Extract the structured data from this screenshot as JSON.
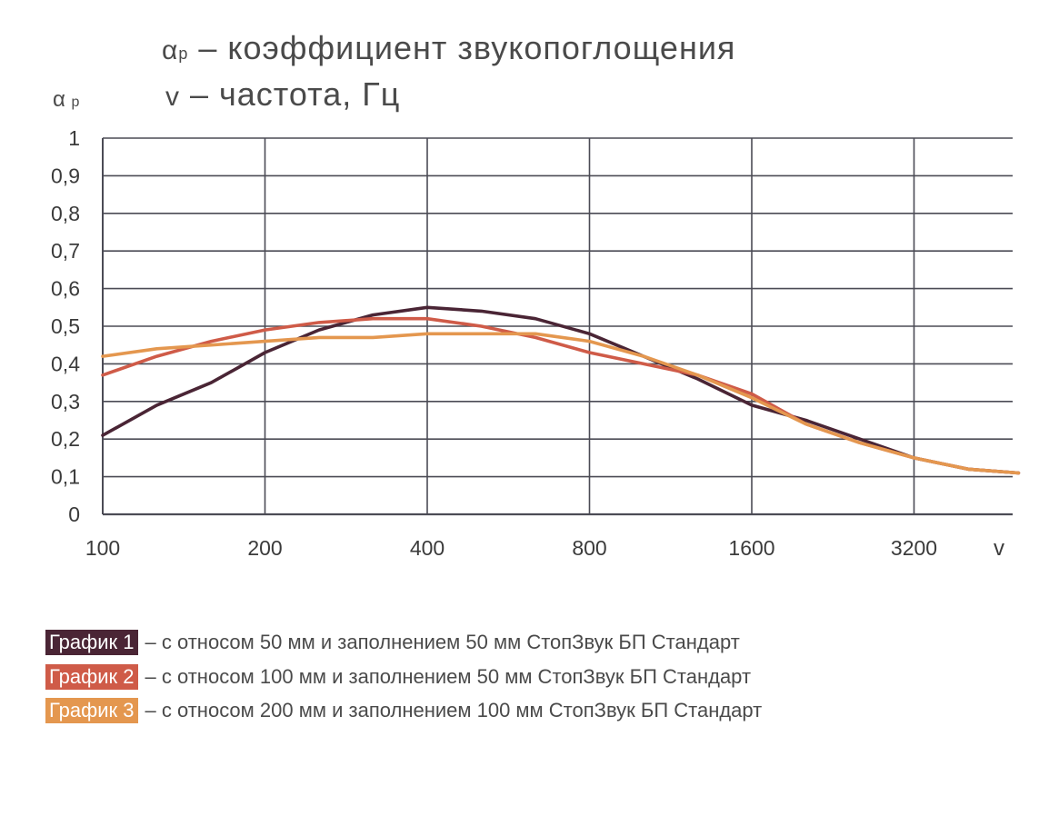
{
  "title": {
    "line1_symbol": "α",
    "line1_sub": "p",
    "line1_text": " – коэффициент звукопоглощения",
    "line2_symbol": "v",
    "line2_text": "  – частота, Гц"
  },
  "y_axis_label": {
    "symbol": "α",
    "sub": "p"
  },
  "chart_data": {
    "type": "line",
    "xlabel": "v",
    "ylabel": "α p",
    "x": [
      100,
      141,
      200,
      283,
      400,
      566,
      800,
      1131,
      1600,
      2263,
      3200,
      4525,
      5000
    ],
    "x_tick_labels": [
      "100",
      "200",
      "400",
      "800",
      "1600",
      "3200"
    ],
    "x_ticks": [
      100,
      200,
      400,
      800,
      1600,
      3200
    ],
    "y_tick_labels": [
      "0",
      "0,1",
      "0,2",
      "0,3",
      "0,4",
      "0,5",
      "0,6",
      "0,7",
      "0,8",
      "0,9",
      "1"
    ],
    "ylim": [
      0,
      1
    ],
    "grid": true,
    "series": [
      {
        "name": "График 1",
        "color": "#4a2535",
        "x": [
          100,
          126,
          159,
          200,
          252,
          317,
          400,
          504,
          635,
          800,
          1008,
          1270,
          1600,
          2016,
          2540,
          3200,
          4032,
          5000
        ],
        "values": [
          0.21,
          0.29,
          0.35,
          0.43,
          0.49,
          0.53,
          0.55,
          0.54,
          0.52,
          0.48,
          0.42,
          0.36,
          0.29,
          0.25,
          0.2,
          0.15,
          0.12,
          0.11
        ]
      },
      {
        "name": "График 2",
        "color": "#cf5b48",
        "x": [
          100,
          126,
          159,
          200,
          252,
          317,
          400,
          504,
          635,
          800,
          1008,
          1270,
          1600,
          2016,
          2540,
          3200,
          4032,
          5000
        ],
        "values": [
          0.37,
          0.42,
          0.46,
          0.49,
          0.51,
          0.52,
          0.52,
          0.5,
          0.47,
          0.43,
          0.4,
          0.37,
          0.32,
          0.24,
          0.19,
          0.15,
          0.12,
          0.11
        ]
      },
      {
        "name": "График 3",
        "color": "#e4974f",
        "x": [
          100,
          126,
          159,
          200,
          252,
          317,
          400,
          504,
          635,
          800,
          1008,
          1270,
          1600,
          2016,
          2540,
          3200,
          4032,
          5000
        ],
        "values": [
          0.42,
          0.44,
          0.45,
          0.46,
          0.47,
          0.47,
          0.48,
          0.48,
          0.48,
          0.46,
          0.42,
          0.37,
          0.31,
          0.24,
          0.19,
          0.15,
          0.12,
          0.11
        ]
      }
    ]
  },
  "legend": [
    {
      "tag": "График 1",
      "text": "– с относом 50 мм и заполнением 50 мм СтопЗвук БП Стандарт",
      "color": "#4a2535"
    },
    {
      "tag": "График 2",
      "text": "– с относом 100 мм и заполнением 50 мм СтопЗвук БП Стандарт",
      "color": "#cf5b48"
    },
    {
      "tag": "График 3",
      "text": "– с относом 200 мм и заполнением 100 мм СтопЗвук БП Стандарт",
      "color": "#e4974f"
    }
  ]
}
